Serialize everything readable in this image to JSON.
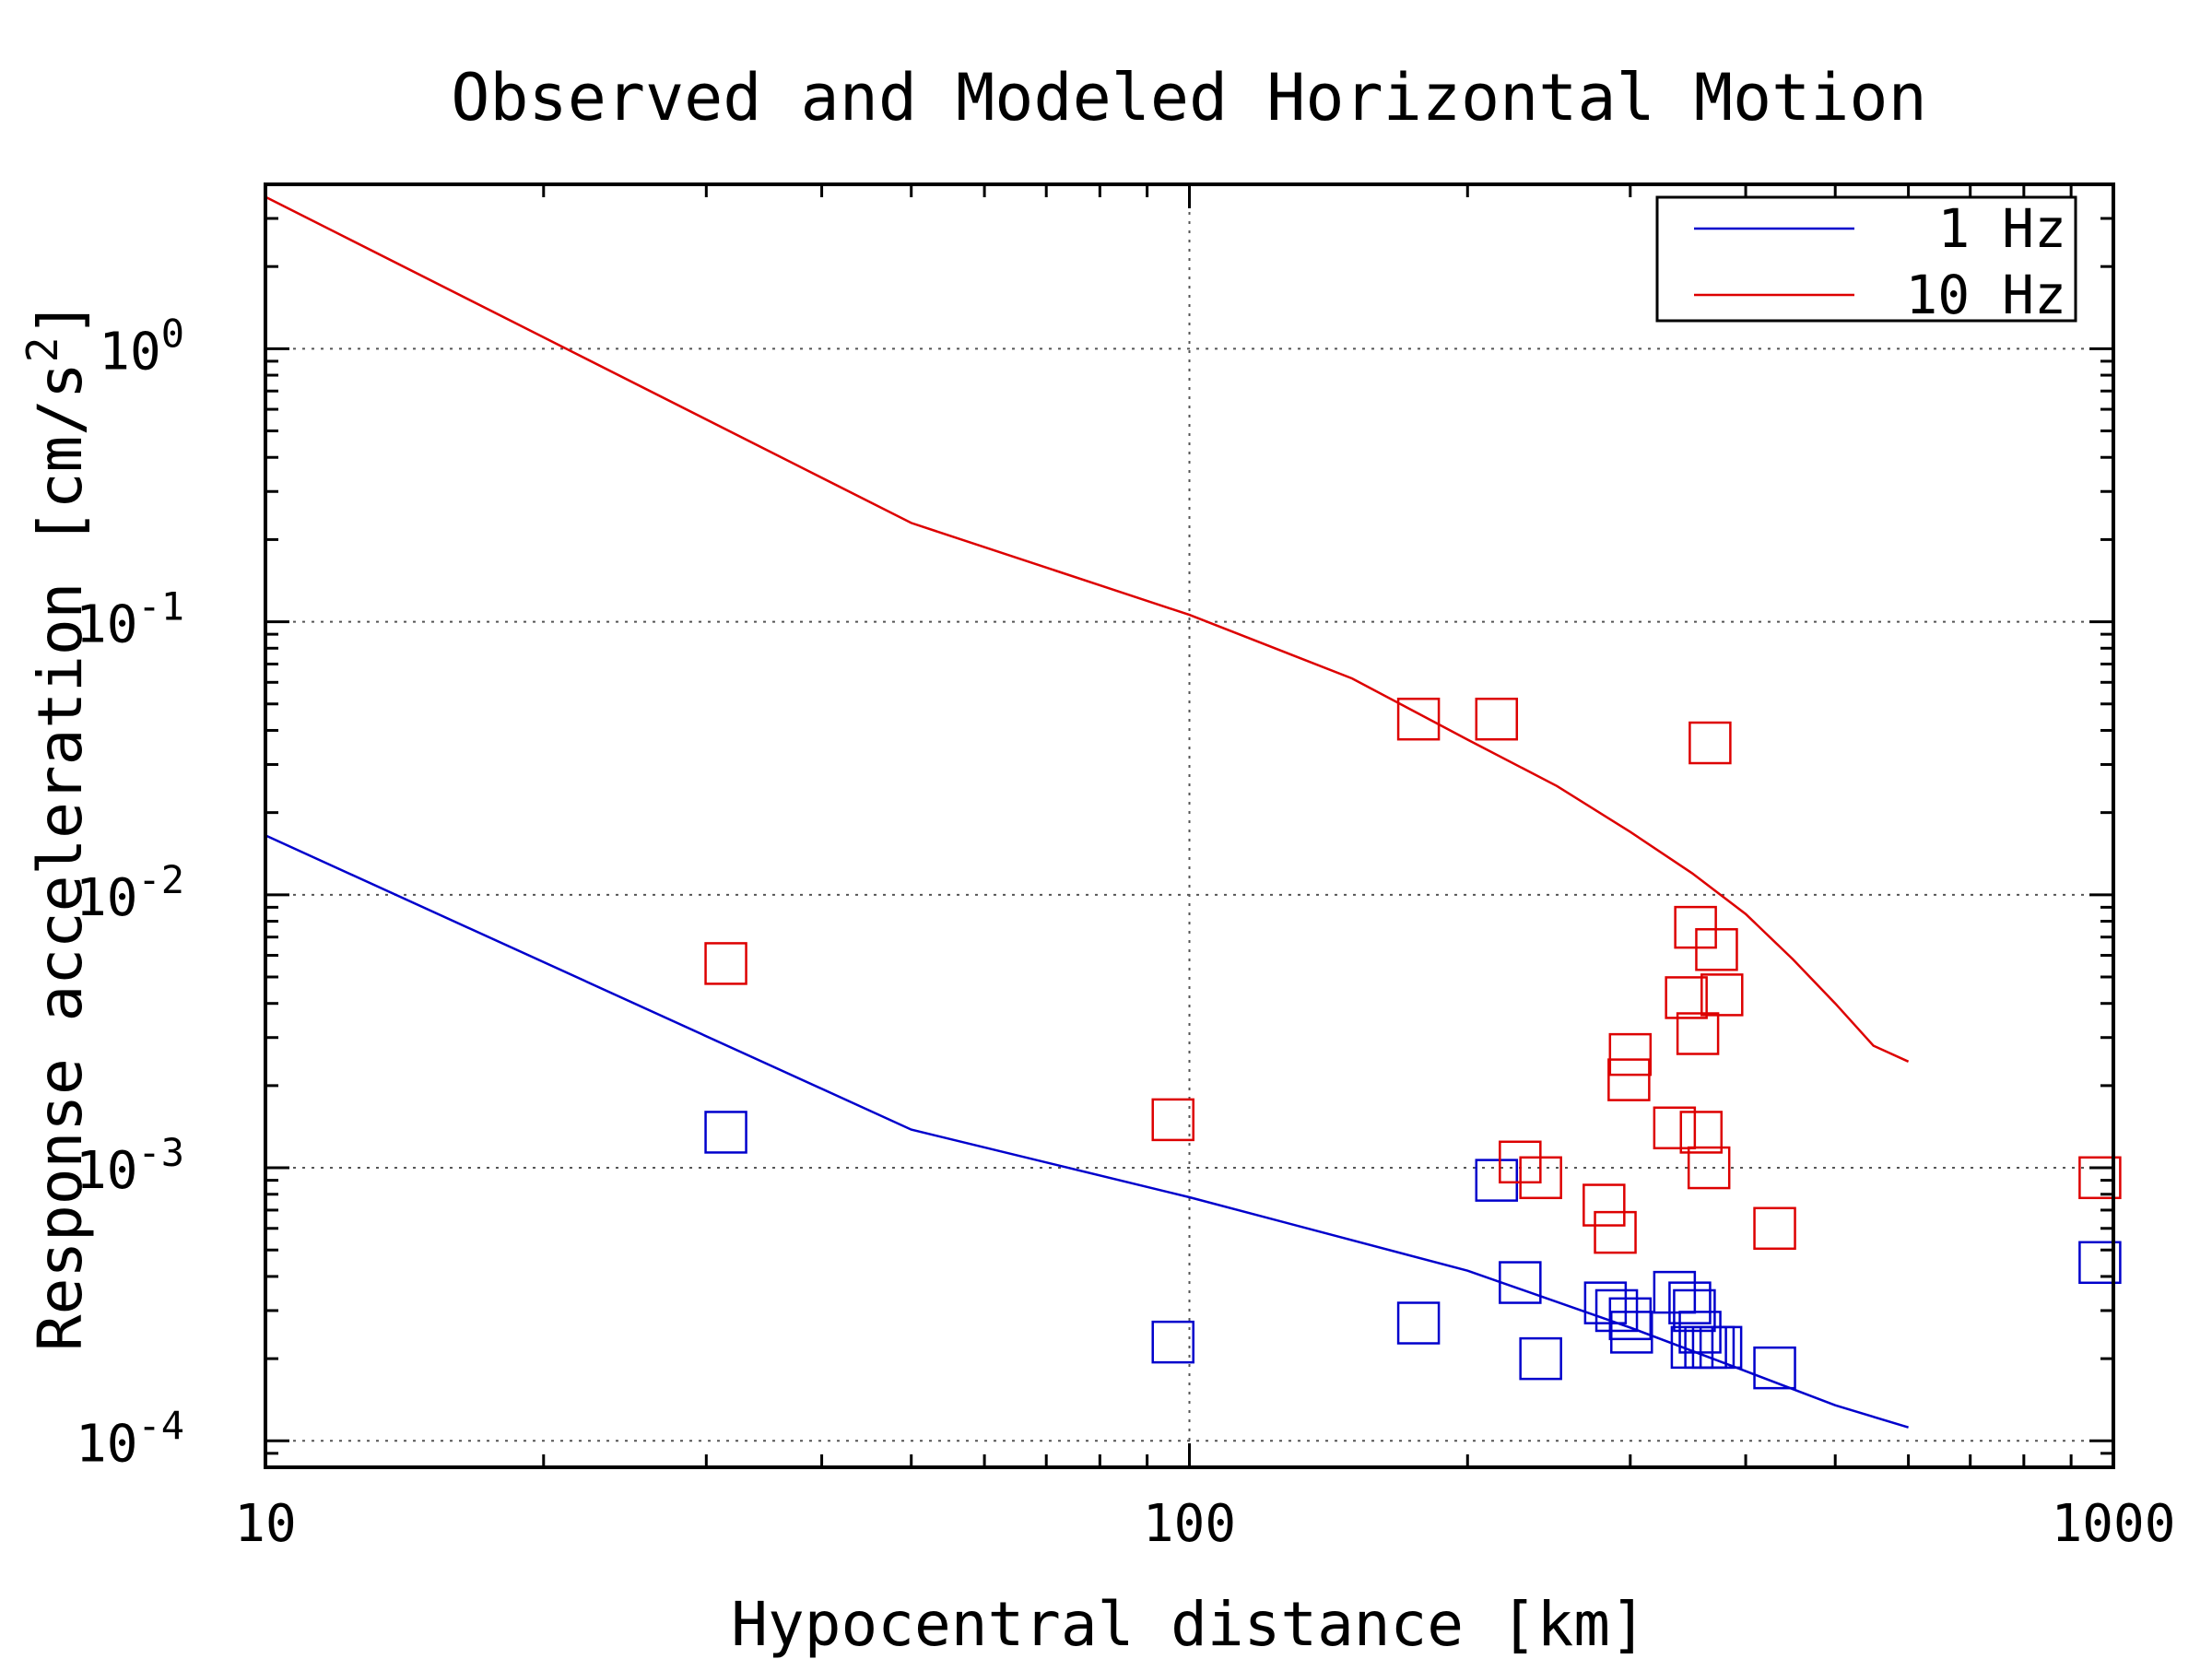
{
  "chart_data": {
    "type": "scatter",
    "title": "Observed and Modeled Horizontal Motion",
    "xlabel": "Hypocentral distance [km]",
    "ylabel_base": "Response acceleration [cm/s",
    "ylabel_sup": "2",
    "ylabel_tail": "]",
    "xscale": "log",
    "yscale": "log",
    "xlim": [
      10,
      1000
    ],
    "ylim": [
      8e-05,
      4
    ],
    "grid": true,
    "legend_position": "top-right",
    "x_ticks": [
      {
        "value": 10,
        "label": "10"
      },
      {
        "value": 100,
        "label": "100"
      },
      {
        "value": 1000,
        "label": "1000"
      }
    ],
    "y_ticks": [
      {
        "value": 1,
        "base": "10",
        "exp": "0"
      },
      {
        "value": 0.1,
        "base": "10",
        "exp": "-1"
      },
      {
        "value": 0.01,
        "base": "10",
        "exp": "-2"
      },
      {
        "value": 0.001,
        "base": "10",
        "exp": "-3"
      },
      {
        "value": 0.0001,
        "base": "10",
        "exp": "-4"
      }
    ],
    "models": [
      {
        "name": "1 Hz",
        "color": "#0000cc",
        "x": [
          10,
          50,
          100,
          200,
          300,
          400,
          500,
          600
        ],
        "y": [
          0.0165,
          0.00138,
          0.00078,
          0.00042,
          0.00026,
          0.00018,
          0.000135,
          0.000112
        ]
      },
      {
        "name": "10 Hz",
        "color": "#dd0000",
        "x": [
          10,
          50,
          100,
          150,
          200,
          250,
          300,
          350,
          400,
          450,
          500,
          550,
          600
        ],
        "y": [
          3.6,
          0.23,
          0.106,
          0.062,
          0.037,
          0.025,
          0.017,
          0.012,
          0.0085,
          0.0058,
          0.004,
          0.0028,
          0.00245
        ]
      }
    ],
    "observations": [
      {
        "model": "1 Hz",
        "color": "#0000cc",
        "points": [
          {
            "x": 31.5,
            "y": 0.00135
          },
          {
            "x": 96,
            "y": 0.00023
          },
          {
            "x": 177,
            "y": 0.00027
          },
          {
            "x": 215,
            "y": 0.0009
          },
          {
            "x": 228,
            "y": 0.00038
          },
          {
            "x": 240,
            "y": 0.0002
          },
          {
            "x": 282,
            "y": 0.00032
          },
          {
            "x": 290,
            "y": 0.0003
          },
          {
            "x": 300,
            "y": 0.00028
          },
          {
            "x": 301,
            "y": 0.00025
          },
          {
            "x": 335,
            "y": 0.00035
          },
          {
            "x": 348,
            "y": 0.00032
          },
          {
            "x": 352,
            "y": 0.0003
          },
          {
            "x": 357,
            "y": 0.00025
          },
          {
            "x": 350,
            "y": 0.00022
          },
          {
            "x": 362,
            "y": 0.00022
          },
          {
            "x": 369,
            "y": 0.00022
          },
          {
            "x": 376,
            "y": 0.00022
          },
          {
            "x": 430,
            "y": 0.000185
          },
          {
            "x": 967,
            "y": 0.00045
          }
        ]
      },
      {
        "model": "10 Hz",
        "color": "#dd0000",
        "points": [
          {
            "x": 31.5,
            "y": 0.0056
          },
          {
            "x": 96,
            "y": 0.0015
          },
          {
            "x": 177,
            "y": 0.044
          },
          {
            "x": 215,
            "y": 0.044
          },
          {
            "x": 228,
            "y": 0.00105
          },
          {
            "x": 240,
            "y": 0.00092
          },
          {
            "x": 281,
            "y": 0.00073
          },
          {
            "x": 289,
            "y": 0.00058
          },
          {
            "x": 300,
            "y": 0.0026
          },
          {
            "x": 299,
            "y": 0.0021
          },
          {
            "x": 335,
            "y": 0.0014
          },
          {
            "x": 345,
            "y": 0.0042
          },
          {
            "x": 353,
            "y": 0.0076
          },
          {
            "x": 355,
            "y": 0.0031
          },
          {
            "x": 358,
            "y": 0.00135
          },
          {
            "x": 365,
            "y": 0.001
          },
          {
            "x": 366,
            "y": 0.036
          },
          {
            "x": 372,
            "y": 0.0063
          },
          {
            "x": 377,
            "y": 0.0043
          },
          {
            "x": 430,
            "y": 0.0006
          },
          {
            "x": 967,
            "y": 0.00092
          }
        ]
      }
    ]
  }
}
